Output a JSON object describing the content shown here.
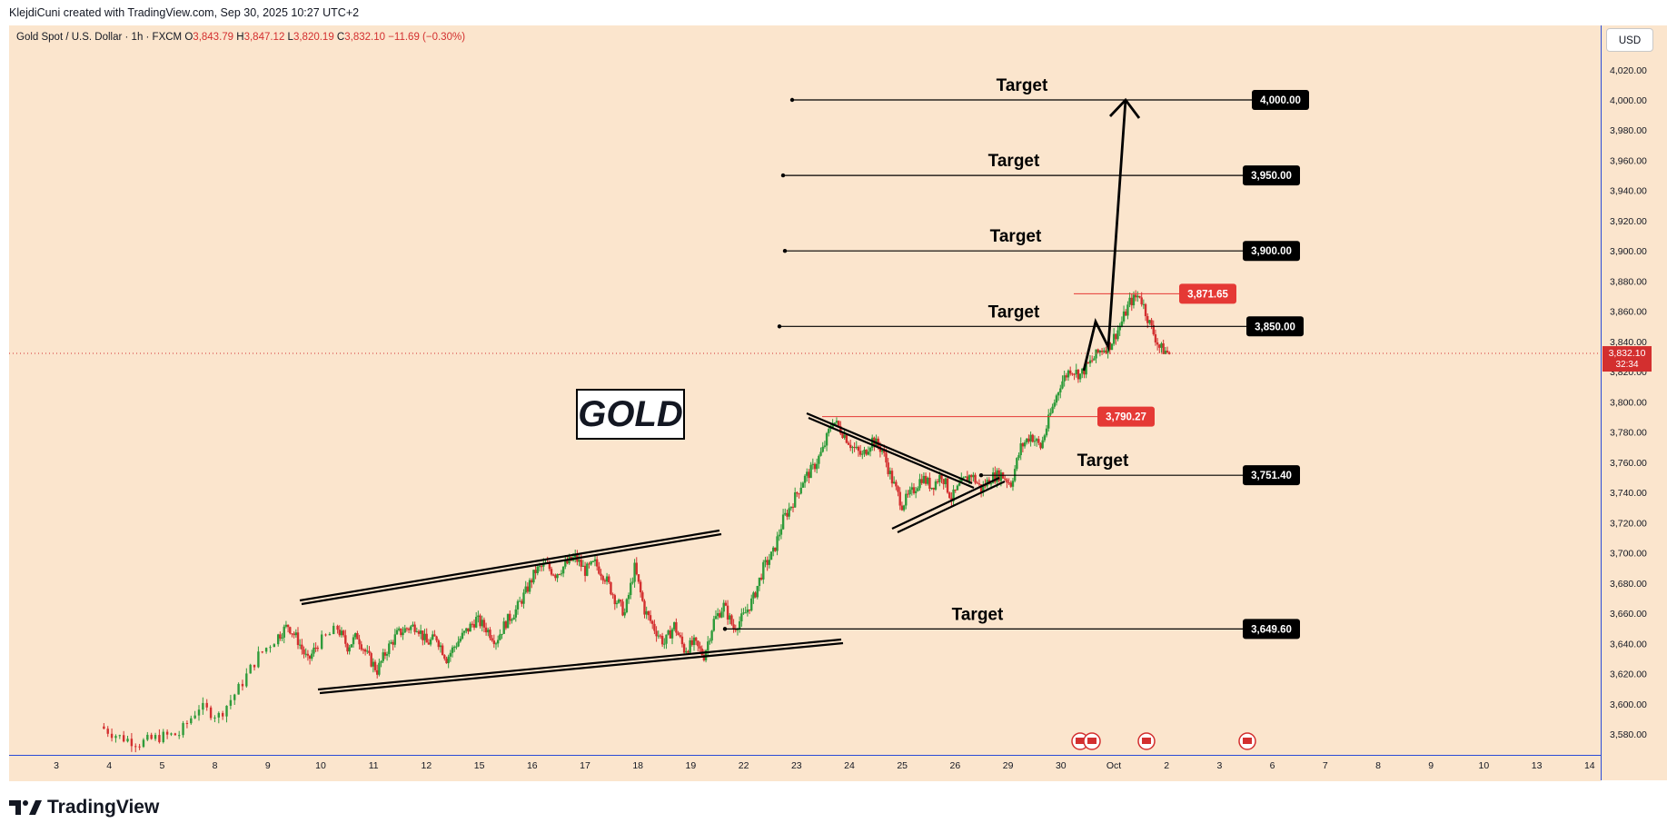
{
  "header": {
    "creator_text": "KlejdiCuni created with TradingView.com, Sep 30, 2025 10:27 UTC+2"
  },
  "legend": {
    "symbol": "Gold Spot / U.S. Dollar · 1h · FXCM",
    "open_label": "O",
    "open": "3,843.79",
    "high_label": "H",
    "high": "3,847.12",
    "low_label": "L",
    "low": "3,820.19",
    "close_label": "C",
    "close": "3,832.10",
    "change": "−11.69 (−0.30%)"
  },
  "currency_button": "USD",
  "gold_label": "GOLD",
  "footer": {
    "brand": "TradingView"
  },
  "colors": {
    "background": "#fbe5cd",
    "up_candle": "#2e9b3a",
    "down_candle": "#d32f2f",
    "red_label": "#e53935",
    "black_label": "#000000"
  },
  "chart_data": {
    "type": "candlestick",
    "symbol": "XAUUSD",
    "timeframe": "1h",
    "ylim": [
      3570,
      4030
    ],
    "y_ticks": [
      "3,580.00",
      "3,600.00",
      "3,620.00",
      "3,640.00",
      "3,660.00",
      "3,680.00",
      "3,700.00",
      "3,720.00",
      "3,740.00",
      "3,760.00",
      "3,780.00",
      "3,800.00",
      "3,820.00",
      "3,840.00",
      "3,860.00",
      "3,880.00",
      "3,900.00",
      "3,920.00",
      "3,940.00",
      "3,960.00",
      "3,980.00",
      "4,000.00",
      "4,020.00"
    ],
    "x_ticks": [
      "3",
      "4",
      "5",
      "8",
      "9",
      "10",
      "11",
      "12",
      "15",
      "16",
      "17",
      "18",
      "19",
      "22",
      "23",
      "24",
      "25",
      "26",
      "29",
      "30",
      "Oct",
      "2",
      "3",
      "6",
      "7",
      "8",
      "9",
      "10",
      "13",
      "14"
    ],
    "price_path": [
      [
        0,
        3585
      ],
      [
        2,
        3578
      ],
      [
        4,
        3574
      ],
      [
        6,
        3578
      ],
      [
        8,
        3580
      ],
      [
        10,
        3598
      ],
      [
        12,
        3592
      ],
      [
        14,
        3610
      ],
      [
        16,
        3632
      ],
      [
        18,
        3645
      ],
      [
        19,
        3652
      ],
      [
        20,
        3642
      ],
      [
        21,
        3628
      ],
      [
        22,
        3640
      ],
      [
        24,
        3650
      ],
      [
        25,
        3638
      ],
      [
        26,
        3645
      ],
      [
        27,
        3632
      ],
      [
        28,
        3622
      ],
      [
        29,
        3636
      ],
      [
        30,
        3646
      ],
      [
        31,
        3650
      ],
      [
        32,
        3652
      ],
      [
        33,
        3640
      ],
      [
        34,
        3644
      ],
      [
        35,
        3630
      ],
      [
        36,
        3640
      ],
      [
        37,
        3648
      ],
      [
        38,
        3656
      ],
      [
        39,
        3650
      ],
      [
        40,
        3642
      ],
      [
        41,
        3654
      ],
      [
        42,
        3662
      ],
      [
        43,
        3674
      ],
      [
        44,
        3688
      ],
      [
        45,
        3692
      ],
      [
        46,
        3686
      ],
      [
        47,
        3692
      ],
      [
        48,
        3697
      ],
      [
        49,
        3688
      ],
      [
        50,
        3693
      ],
      [
        51,
        3684
      ],
      [
        52,
        3670
      ],
      [
        53,
        3660
      ],
      [
        54,
        3690
      ],
      [
        55,
        3662
      ],
      [
        56,
        3650
      ],
      [
        57,
        3640
      ],
      [
        58,
        3652
      ],
      [
        59,
        3636
      ],
      [
        60,
        3640
      ],
      [
        61,
        3632
      ],
      [
        62,
        3655
      ],
      [
        63,
        3665
      ],
      [
        64,
        3650
      ],
      [
        65,
        3658
      ],
      [
        66,
        3670
      ],
      [
        67,
        3690
      ],
      [
        68,
        3700
      ],
      [
        69,
        3722
      ],
      [
        70,
        3734
      ],
      [
        71,
        3748
      ],
      [
        72,
        3756
      ],
      [
        73,
        3768
      ],
      [
        74,
        3788
      ],
      [
        75,
        3780
      ],
      [
        76,
        3770
      ],
      [
        77,
        3764
      ],
      [
        78,
        3775
      ],
      [
        79,
        3768
      ],
      [
        80,
        3748
      ],
      [
        81,
        3732
      ],
      [
        82,
        3740
      ],
      [
        83,
        3750
      ],
      [
        84,
        3744
      ],
      [
        85,
        3752
      ],
      [
        86,
        3736
      ],
      [
        87,
        3746
      ],
      [
        88,
        3752
      ],
      [
        89,
        3742
      ],
      [
        90,
        3750
      ],
      [
        91,
        3752
      ],
      [
        92,
        3746
      ],
      [
        93,
        3770
      ],
      [
        94,
        3778
      ],
      [
        95,
        3770
      ],
      [
        96,
        3792
      ],
      [
        97,
        3812
      ],
      [
        98,
        3822
      ],
      [
        99,
        3818
      ],
      [
        100,
        3826
      ],
      [
        101,
        3834
      ],
      [
        102,
        3838
      ],
      [
        103,
        3850
      ],
      [
        104,
        3866
      ],
      [
        105,
        3871
      ],
      [
        106,
        3852
      ],
      [
        107,
        3836
      ],
      [
        108,
        3832
      ]
    ],
    "levels": [
      {
        "label": "Target",
        "value": 4000.0,
        "price_label": "4,000.00",
        "style": "black"
      },
      {
        "label": "Target",
        "value": 3950.0,
        "price_label": "3,950.00",
        "style": "black"
      },
      {
        "label": "Target",
        "value": 3900.0,
        "price_label": "3,900.00",
        "style": "black"
      },
      {
        "label": "Target",
        "value": 3850.0,
        "price_label": "3,850.00",
        "style": "black"
      },
      {
        "label": "Target",
        "value": 3751.4,
        "price_label": "3,751.40",
        "style": "black"
      },
      {
        "label": "Target",
        "value": 3649.6,
        "price_label": "3,649.60",
        "style": "black"
      }
    ],
    "red_levels": [
      {
        "value": 3871.65,
        "price_label": "3,871.65"
      },
      {
        "value": 3790.27,
        "price_label": "3,790.27"
      }
    ],
    "current_price": {
      "value": 3832.1,
      "price_label": "3,832.10",
      "countdown": "32:34"
    },
    "patterns": [
      "rising channel",
      "symmetrical triangle",
      "projected breakout arrow"
    ]
  }
}
